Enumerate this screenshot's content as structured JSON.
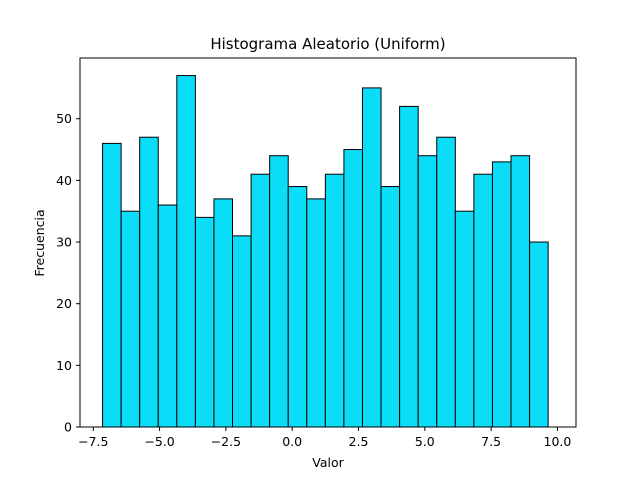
{
  "chart_data": {
    "type": "bar",
    "title": "Histograma Aleatorio (Uniform)",
    "xlabel": "Valor",
    "ylabel": "Frecuencia",
    "bin_start": -7.15,
    "bin_width": 0.7,
    "values": [
      46,
      35,
      47,
      36,
      57,
      34,
      37,
      31,
      41,
      44,
      39,
      37,
      41,
      45,
      55,
      39,
      52,
      44,
      47,
      35,
      41,
      43,
      44,
      30
    ],
    "xlim": [
      -8.0,
      10.7
    ],
    "ylim": [
      0,
      59.85
    ],
    "xticks": [
      -7.5,
      -5.0,
      -2.5,
      0.0,
      2.5,
      5.0,
      7.5,
      10.0
    ],
    "xtick_labels": [
      "−7.5",
      "−5.0",
      "−2.5",
      "0.0",
      "2.5",
      "5.0",
      "7.5",
      "10.0"
    ],
    "yticks": [
      0,
      10,
      20,
      30,
      40,
      50
    ],
    "ytick_labels": [
      "0",
      "10",
      "20",
      "30",
      "40",
      "50"
    ],
    "bar_color": "#0addf8",
    "edge_color": "#000000",
    "grid": false,
    "legend": "none"
  }
}
